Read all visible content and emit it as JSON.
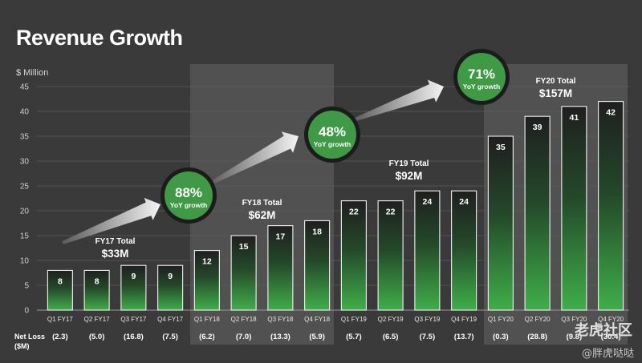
{
  "title": "Revenue Growth",
  "unit_label": "$ Million",
  "net_loss_label": "Net Loss ($M)",
  "watermark": {
    "site": "老虎社区",
    "author": "@胖虎哒哒"
  },
  "colors": {
    "background": "#3a3a3a",
    "highlight_band": "#5a5a5a",
    "bar_top": "#1e1e1e",
    "bar_bottom": "#3fae49",
    "bubble": "#3f9a45",
    "bubble_ring": "#1c1c1c"
  },
  "chart_data": {
    "type": "bar",
    "ylabel": "$ Million",
    "ylim": [
      0,
      45
    ],
    "yticks": [
      0,
      5,
      10,
      15,
      20,
      25,
      30,
      35,
      40,
      45
    ],
    "grid": true,
    "categories": [
      "Q1 FY17",
      "Q2 FY17",
      "Q3 FY17",
      "Q4 FY17",
      "Q1 FY18",
      "Q2 FY18",
      "Q3 FY18",
      "Q4 FY18",
      "Q1 FY19",
      "Q2 FY19",
      "Q3 FY19",
      "Q4 FY19",
      "Q1 FY20",
      "Q2 FY20",
      "Q3 FY20",
      "Q4 FY20"
    ],
    "values": [
      8,
      8,
      9,
      9,
      12,
      15,
      17,
      18,
      22,
      22,
      24,
      24,
      35,
      39,
      41,
      42
    ],
    "net_loss": [
      "(2.3)",
      "(5.0)",
      "(16.8)",
      "(7.5)",
      "(6.2)",
      "(7.0)",
      "(13.3)",
      "(5.9)",
      "(5.7)",
      "(6.5)",
      "(7.5)",
      "(13.7)",
      "(0.3)",
      "(28.8)",
      "(9.8)",
      "(30.4)"
    ],
    "highlighted_years": [
      1,
      3
    ],
    "year_totals": [
      {
        "label": "FY17 Total",
        "value": "$33M"
      },
      {
        "label": "FY18 Total",
        "value": "$62M"
      },
      {
        "label": "FY19 Total",
        "value": "$92M"
      },
      {
        "label": "FY20 Total",
        "value": "$157M"
      }
    ],
    "growth_bubbles": [
      {
        "pct": "88%",
        "label": "YoY growth"
      },
      {
        "pct": "48%",
        "label": "YoY growth"
      },
      {
        "pct": "71%",
        "label": "YoY growth"
      }
    ]
  }
}
